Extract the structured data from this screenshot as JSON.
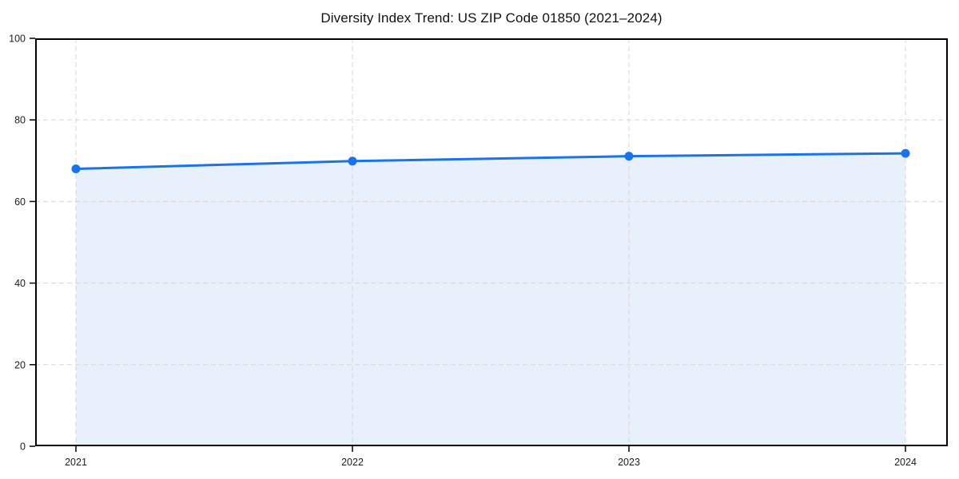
{
  "chart_data": {
    "type": "area",
    "title": "Diversity Index Trend: US ZIP Code 01850 (2021–2024)",
    "x_labels": [
      "2021",
      "2022",
      "2023",
      "2024"
    ],
    "x": [
      2021,
      2022,
      2023,
      2024
    ],
    "values": [
      68.0,
      69.9,
      71.1,
      71.8
    ],
    "series_name": "Diversity Index",
    "xlabel": "",
    "ylabel": "",
    "ylim": [
      0,
      100
    ],
    "yticks": [
      0,
      20,
      40,
      60,
      80,
      100
    ],
    "grid": true,
    "grid_style": "dashed",
    "legend": false,
    "marker": "circle"
  },
  "style": {
    "line_color": "#1a73e8",
    "marker_color": "#1a73e8",
    "fill_color": "#e8f0fc",
    "grid_color": "#d7d7d7",
    "axis_color": "#000000",
    "tick_label_color": "#1c1c1c",
    "title_color": "#111111",
    "background_color": "#ffffff"
  }
}
